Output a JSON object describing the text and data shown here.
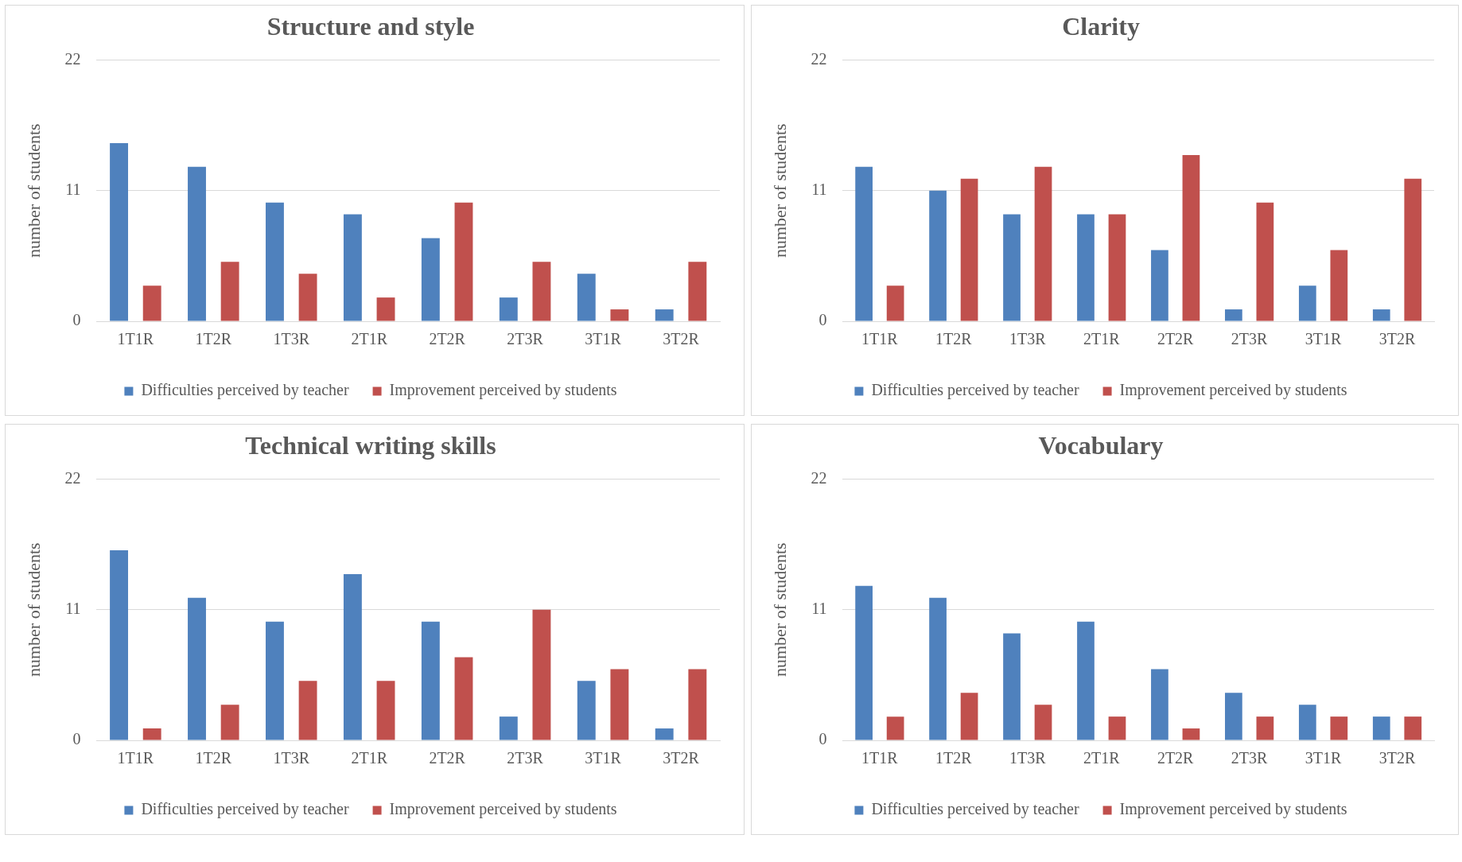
{
  "chart_data": [
    {
      "type": "bar",
      "title": "Structure and style",
      "ylabel": "number of students",
      "categories": [
        "1T1R",
        "1T2R",
        "1T3R",
        "2T1R",
        "2T2R",
        "2T3R",
        "3T1R",
        "3T2R"
      ],
      "series": [
        {
          "name": "Difficulties perceived by teacher",
          "color": "#4f81bd",
          "values": [
            15,
            13,
            10,
            9,
            7,
            2,
            4,
            1
          ]
        },
        {
          "name": "Improvement perceived by students",
          "color": "#c0504d",
          "values": [
            3,
            5,
            4,
            2,
            10,
            5,
            1,
            5
          ]
        }
      ],
      "ylim": [
        0,
        22
      ],
      "yticks": [
        0,
        11,
        22
      ],
      "grid": "y",
      "legend": "bottom"
    },
    {
      "type": "bar",
      "title": "Clarity",
      "ylabel": "number of students",
      "categories": [
        "1T1R",
        "1T2R",
        "1T3R",
        "2T1R",
        "2T2R",
        "2T3R",
        "3T1R",
        "3T2R"
      ],
      "series": [
        {
          "name": "Difficulties perceived by teacher",
          "color": "#4f81bd",
          "values": [
            13,
            11,
            9,
            9,
            6,
            1,
            3,
            1
          ]
        },
        {
          "name": "Improvement perceived by students",
          "color": "#c0504d",
          "values": [
            3,
            12,
            13,
            9,
            14,
            10,
            6,
            12
          ]
        }
      ],
      "ylim": [
        0,
        22
      ],
      "yticks": [
        0,
        11,
        22
      ],
      "grid": "y",
      "legend": "bottom"
    },
    {
      "type": "bar",
      "title": "Technical writing skills",
      "ylabel": "number of students",
      "categories": [
        "1T1R",
        "1T2R",
        "1T3R",
        "2T1R",
        "2T2R",
        "2T3R",
        "3T1R",
        "3T2R"
      ],
      "series": [
        {
          "name": "Difficulties perceived by teacher",
          "color": "#4f81bd",
          "values": [
            16,
            12,
            10,
            14,
            10,
            2,
            5,
            1
          ]
        },
        {
          "name": "Improvement perceived by students",
          "color": "#c0504d",
          "values": [
            1,
            3,
            5,
            5,
            7,
            11,
            6,
            6
          ]
        }
      ],
      "ylim": [
        0,
        22
      ],
      "yticks": [
        0,
        11,
        22
      ],
      "grid": "y",
      "legend": "bottom"
    },
    {
      "type": "bar",
      "title": "Vocabulary",
      "ylabel": "number of students",
      "categories": [
        "1T1R",
        "1T2R",
        "1T3R",
        "2T1R",
        "2T2R",
        "2T3R",
        "3T1R",
        "3T2R"
      ],
      "series": [
        {
          "name": "Difficulties perceived by teacher",
          "color": "#4f81bd",
          "values": [
            13,
            12,
            9,
            10,
            6,
            4,
            3,
            2
          ]
        },
        {
          "name": "Improvement perceived by students",
          "color": "#c0504d",
          "values": [
            2,
            4,
            3,
            2,
            1,
            2,
            2,
            2
          ]
        }
      ],
      "ylim": [
        0,
        22
      ],
      "yticks": [
        0,
        11,
        22
      ],
      "grid": "y",
      "legend": "bottom"
    }
  ]
}
